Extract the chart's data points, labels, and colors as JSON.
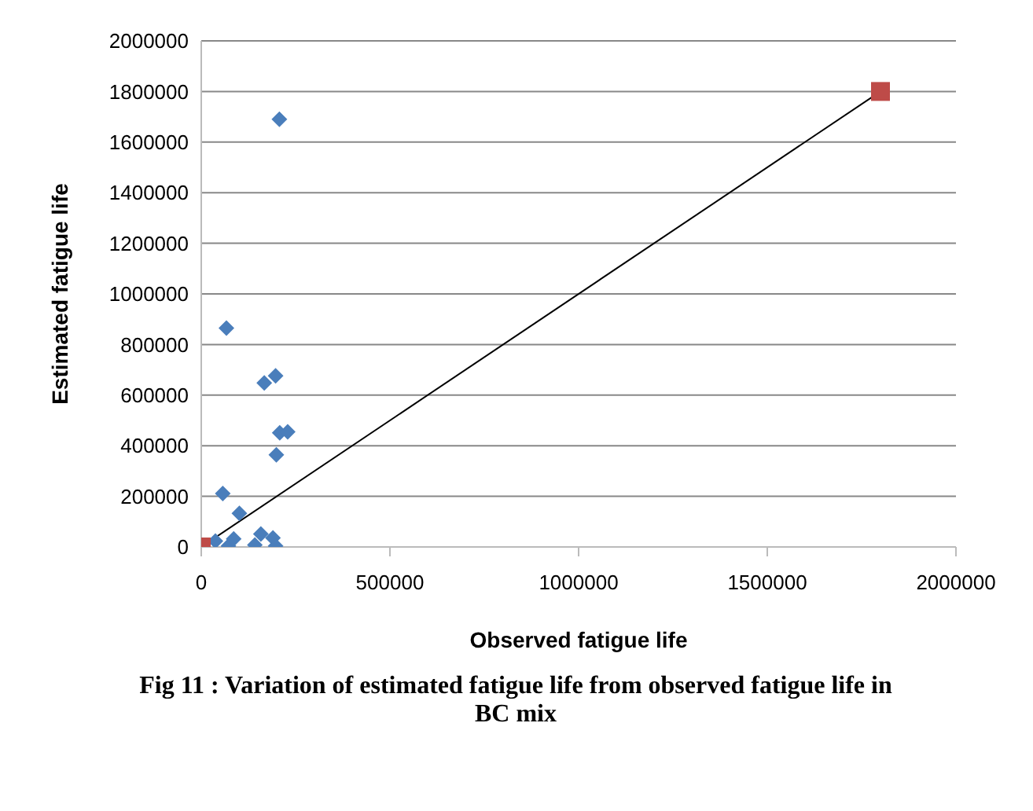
{
  "chart_data": {
    "type": "scatter",
    "xlabel": "Observed fatigue life",
    "ylabel": "Estimated fatigue life",
    "annotations": [
      "Fig 11 : Variation of estimated fatigue life from observed fatigue life in BC mix"
    ],
    "xlim": [
      0,
      2000000
    ],
    "xticks": [
      0,
      500000,
      1000000,
      1500000,
      2000000
    ],
    "ylim": [
      0,
      2000000
    ],
    "yticks": [
      0,
      200000,
      400000,
      600000,
      800000,
      1000000,
      1200000,
      1400000,
      1600000,
      1800000,
      2000000
    ],
    "grid": "y",
    "series": [
      {
        "marker": "diamond",
        "color": "#4a7ebb",
        "x": [
          207000,
          66700,
          167000,
          197000,
          208000,
          229000,
          199000,
          57000,
          101000,
          37500,
          72000,
          86000,
          142000,
          158000,
          190000,
          197000
        ],
        "values": [
          1690000,
          865000,
          648000,
          676000,
          451000,
          455000,
          364000,
          211000,
          133000,
          23000,
          4000,
          32000,
          8000,
          51000,
          36000,
          4000
        ]
      },
      {
        "type": "line",
        "marker": "none",
        "color": "#000000",
        "x": [
          0,
          1800000
        ],
        "values": [
          0,
          1800000
        ]
      },
      {
        "type": "scatter",
        "marker": "square",
        "color": "#be4b48",
        "x": [
          0,
          1800000
        ],
        "values": [
          0,
          1800000
        ]
      }
    ]
  }
}
